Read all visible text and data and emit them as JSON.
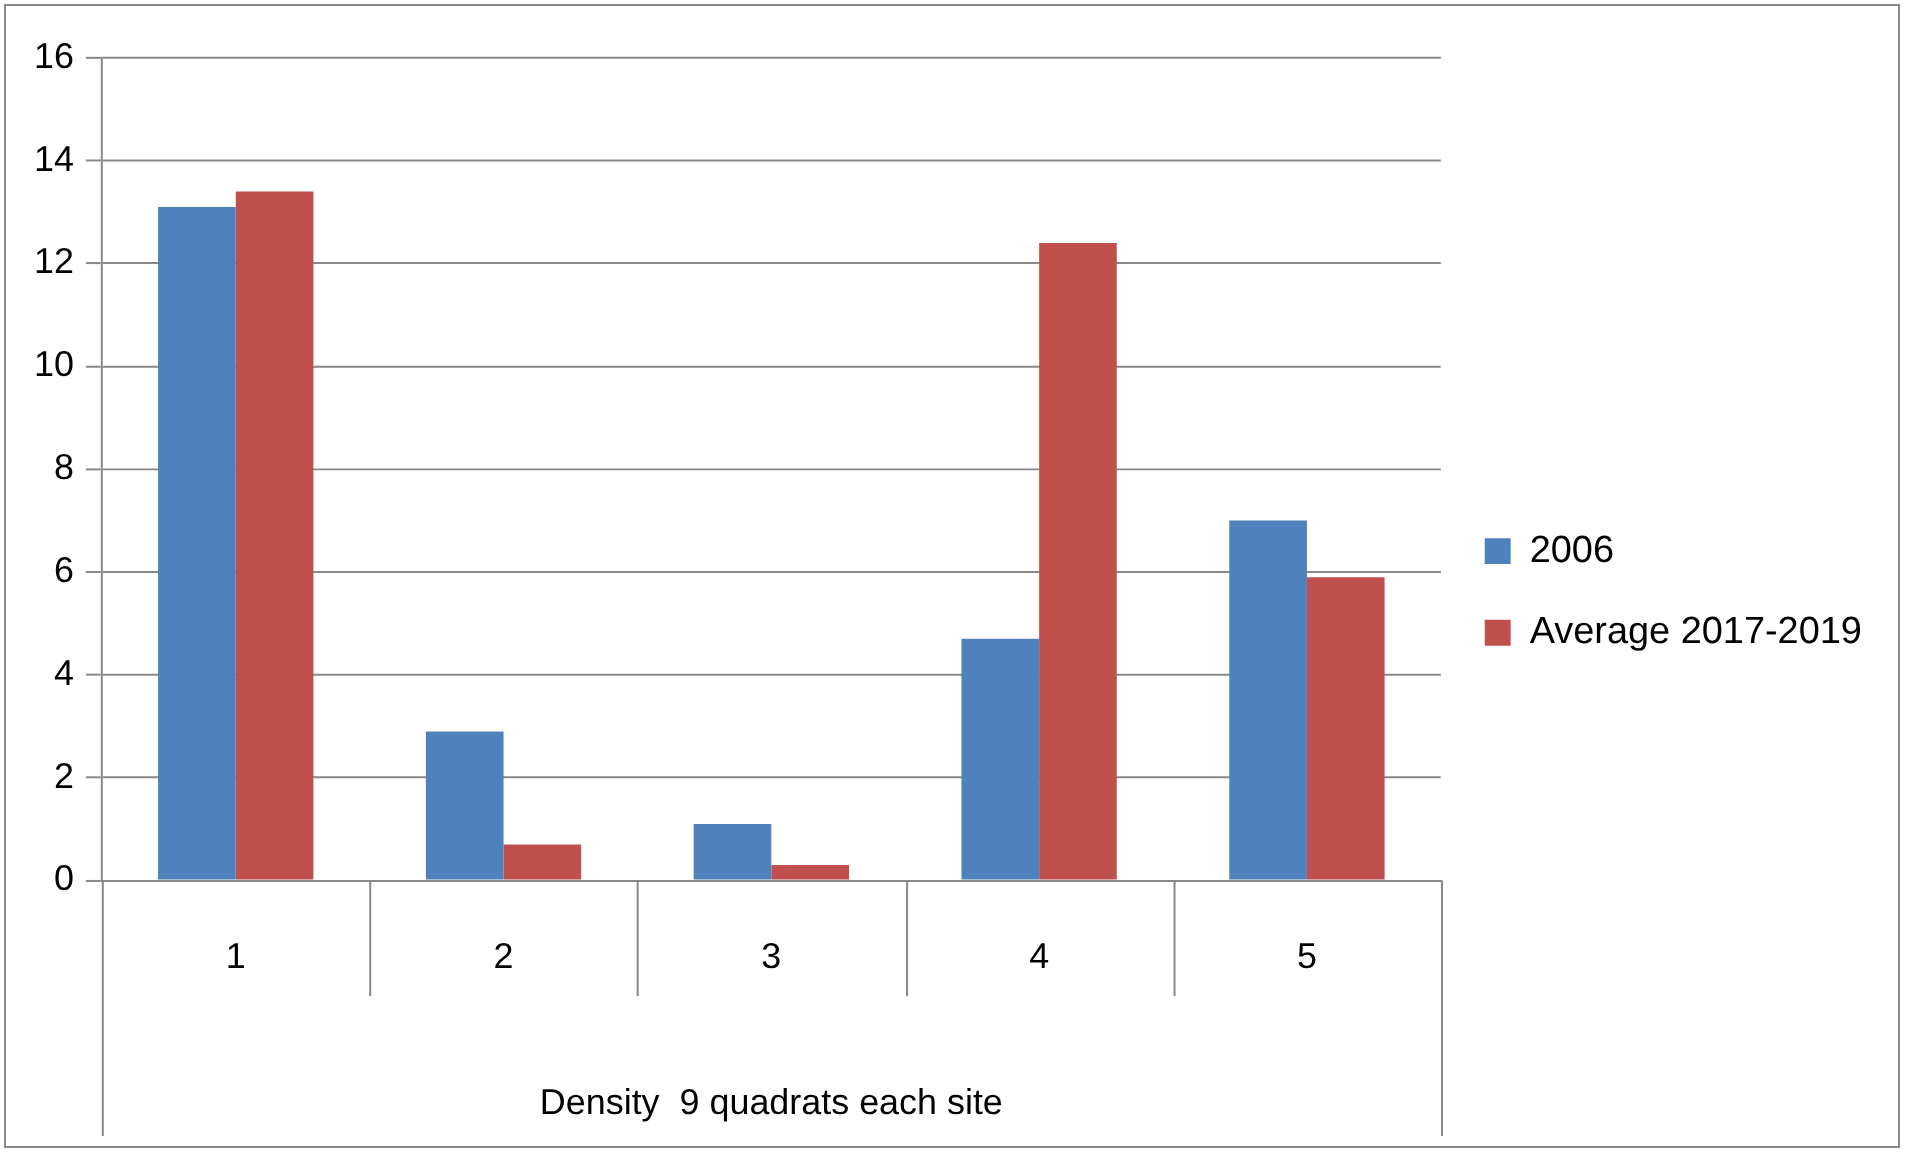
{
  "chart_data": {
    "type": "bar",
    "xlabel": "Density  9 quadrats each site",
    "categories": [
      "1",
      "2",
      "3",
      "4",
      "5"
    ],
    "series": [
      {
        "name": "2006",
        "color": "#4f81bd",
        "values": [
          13.1,
          2.9,
          1.1,
          4.7,
          7.0
        ]
      },
      {
        "name": "Average 2017-2019",
        "color": "#c0504d",
        "values": [
          13.4,
          0.7,
          0.3,
          12.4,
          5.9
        ]
      }
    ],
    "ylim": [
      0,
      16
    ],
    "yticks": [
      0,
      2,
      4,
      6,
      8,
      10,
      12,
      14,
      16
    ],
    "grid": "y",
    "legend": "right"
  }
}
